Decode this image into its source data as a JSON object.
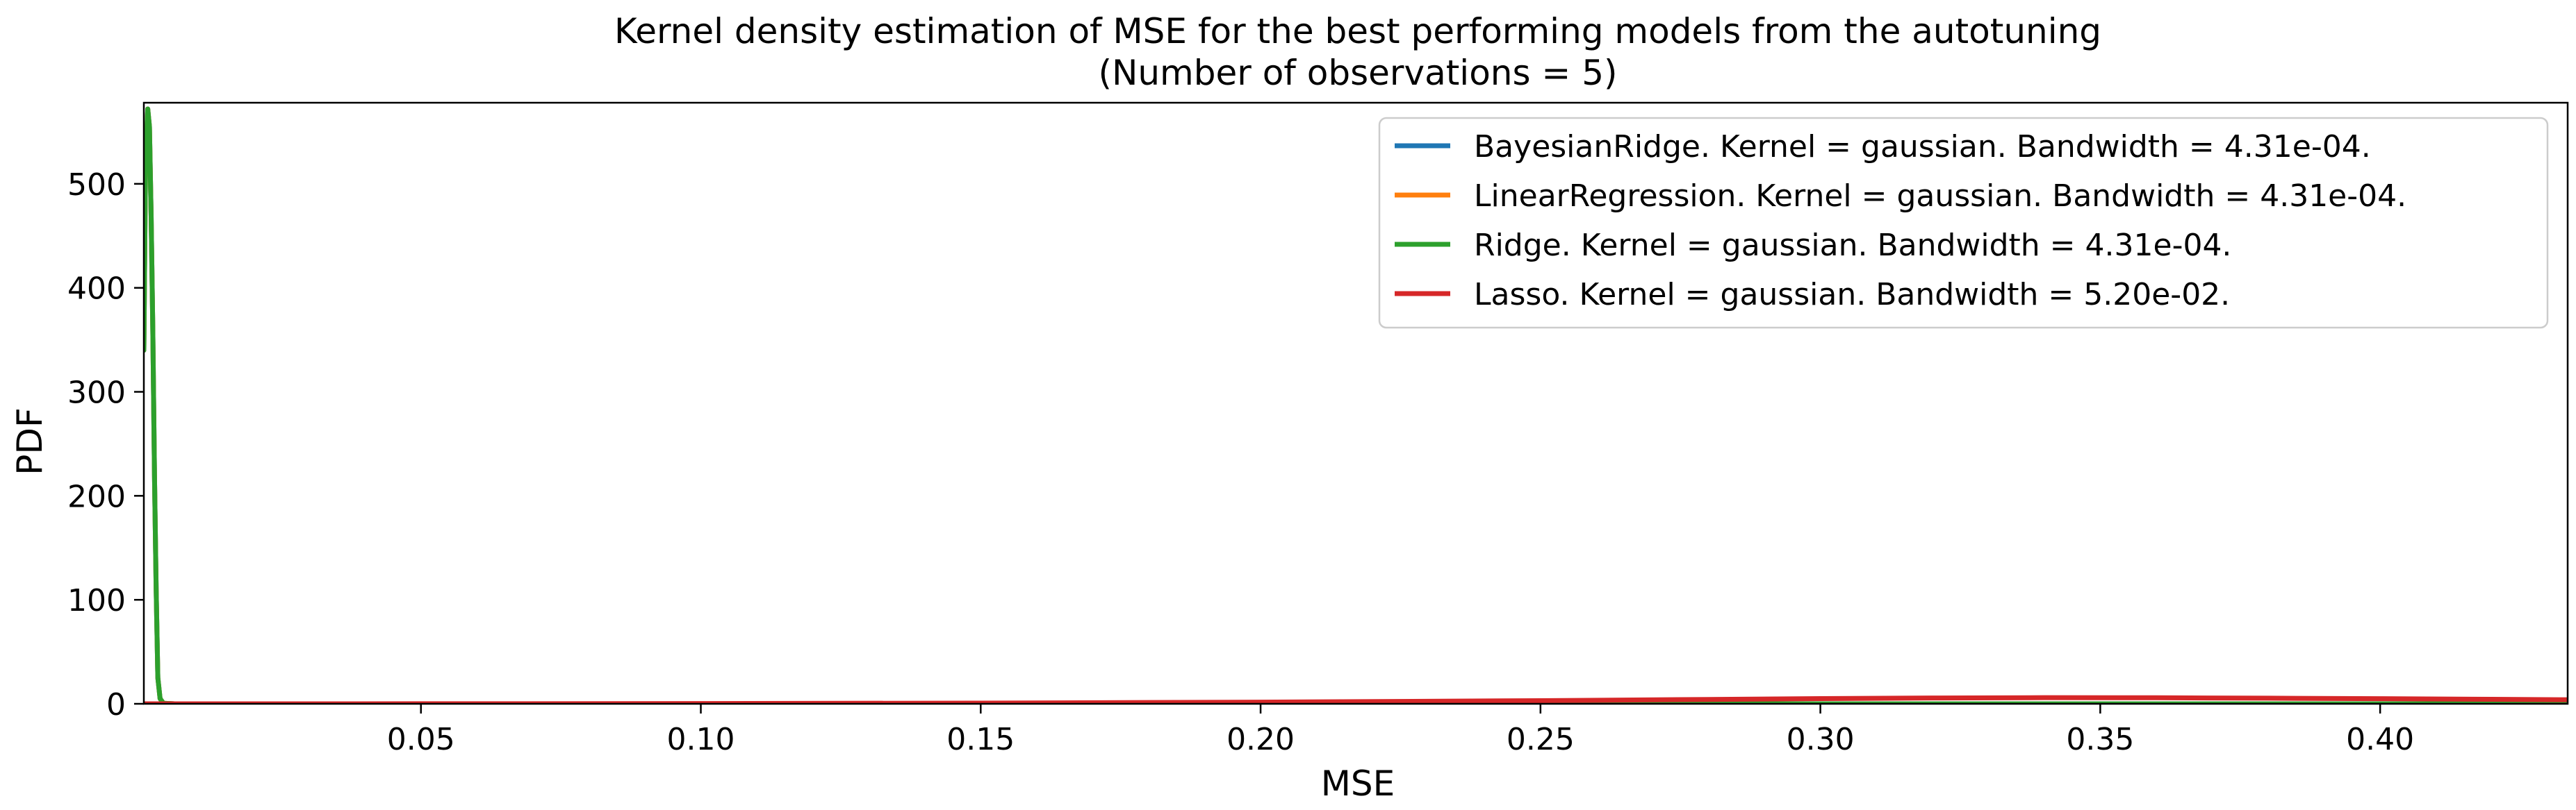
{
  "chart_data": {
    "type": "line",
    "title": "Kernel density estimation of MSE for the best performing models from the autotuning",
    "subtitle": "(Number of observations = 5)",
    "xlabel": "MSE",
    "ylabel": "PDF",
    "xlim": [
      0.0005,
      0.4335
    ],
    "ylim": [
      0,
      578
    ],
    "x_ticks": [
      0.05,
      0.1,
      0.15,
      0.2,
      0.25,
      0.3,
      0.35,
      0.4
    ],
    "x_tick_labels": [
      "0.05",
      "0.10",
      "0.15",
      "0.20",
      "0.25",
      "0.30",
      "0.35",
      "0.40"
    ],
    "y_ticks": [
      0,
      100,
      200,
      300,
      400,
      500
    ],
    "y_tick_labels": [
      "0",
      "100",
      "200",
      "300",
      "400",
      "500"
    ],
    "grid": false,
    "legend_position": "upper right",
    "series": [
      {
        "name": "BayesianRidge. Kernel = gaussian. Bandwidth = 4.31e-04.",
        "color": "#1f77b4",
        "x": [
          0.0005,
          0.0008,
          0.0012,
          0.0015,
          0.0018,
          0.0021,
          0.0024,
          0.0027,
          0.003,
          0.0034,
          0.004,
          0.006,
          0.02,
          0.1,
          0.2,
          0.3,
          0.4335
        ],
        "y": [
          340,
          520,
          572,
          555,
          470,
          360,
          220,
          110,
          25,
          5,
          0.5,
          0,
          0,
          0,
          0,
          0,
          0
        ]
      },
      {
        "name": "LinearRegression. Kernel = gaussian. Bandwidth = 4.31e-04.",
        "color": "#ff7f0e",
        "x": [
          0.0005,
          0.0008,
          0.0012,
          0.0015,
          0.0018,
          0.0021,
          0.0024,
          0.0027,
          0.003,
          0.0034,
          0.004,
          0.006,
          0.02,
          0.1,
          0.2,
          0.3,
          0.4335
        ],
        "y": [
          340,
          520,
          572,
          555,
          470,
          360,
          220,
          110,
          25,
          5,
          0.5,
          0,
          0,
          0,
          0,
          0,
          0
        ]
      },
      {
        "name": "Ridge. Kernel = gaussian. Bandwidth = 4.31e-04.",
        "color": "#2ca02c",
        "x": [
          0.0005,
          0.0008,
          0.0012,
          0.0015,
          0.0018,
          0.0021,
          0.0024,
          0.0027,
          0.003,
          0.0034,
          0.004,
          0.006,
          0.02,
          0.1,
          0.2,
          0.3,
          0.4335
        ],
        "y": [
          340,
          520,
          572,
          555,
          470,
          360,
          220,
          110,
          25,
          5,
          0.5,
          0,
          0,
          0,
          0,
          0,
          0
        ]
      },
      {
        "name": "Lasso. Kernel = gaussian. Bandwidth = 5.20e-02.",
        "color": "#d62728",
        "x": [
          0.0005,
          0.05,
          0.1,
          0.15,
          0.2,
          0.25,
          0.28,
          0.3,
          0.32,
          0.34,
          0.36,
          0.38,
          0.4,
          0.42,
          0.4335
        ],
        "y": [
          0,
          0.05,
          0.25,
          0.7,
          1.6,
          3.0,
          4.2,
          5.0,
          5.6,
          5.9,
          5.8,
          5.4,
          4.9,
          4.3,
          3.9
        ]
      }
    ]
  }
}
